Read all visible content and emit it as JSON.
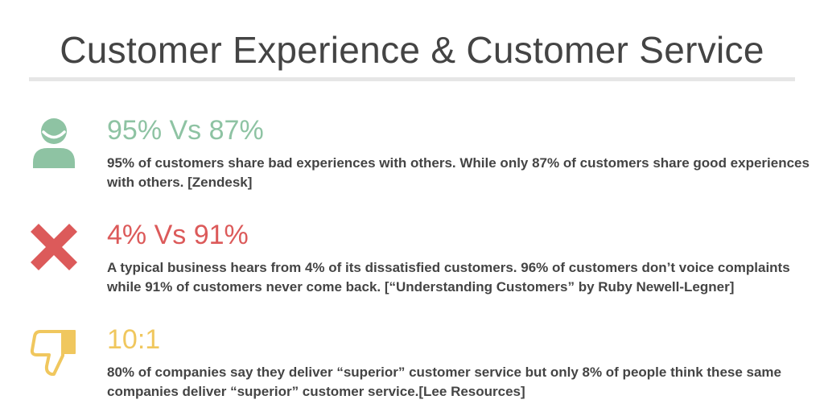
{
  "title": "Customer Experience & Customer Service",
  "stats": [
    {
      "icon": "user-icon",
      "color": "#8ec3a3",
      "headline": "95% Vs 87%",
      "description_lines": [
        "95% of customers share bad experiences with others. While only 87% of customers share good experiences",
        "with others. [Zendesk]"
      ]
    },
    {
      "icon": "cross-icon",
      "color": "#dc5a5a",
      "headline": "4% Vs 91%",
      "description_lines": [
        "A typical business hears from 4% of its dissatisfied customers. 96% of customers don’t voice complaints",
        "while 91% of customers never come back. [“Understanding Customers” by Ruby Newell-Legner]"
      ]
    },
    {
      "icon": "thumbs-down-icon",
      "color": "#f0c75e",
      "headline": "10:1",
      "description_lines": [
        "80% of companies say they deliver “superior” customer service but only 8% of people think these same",
        "companies deliver “superior” customer service.[Lee Resources]"
      ]
    }
  ]
}
